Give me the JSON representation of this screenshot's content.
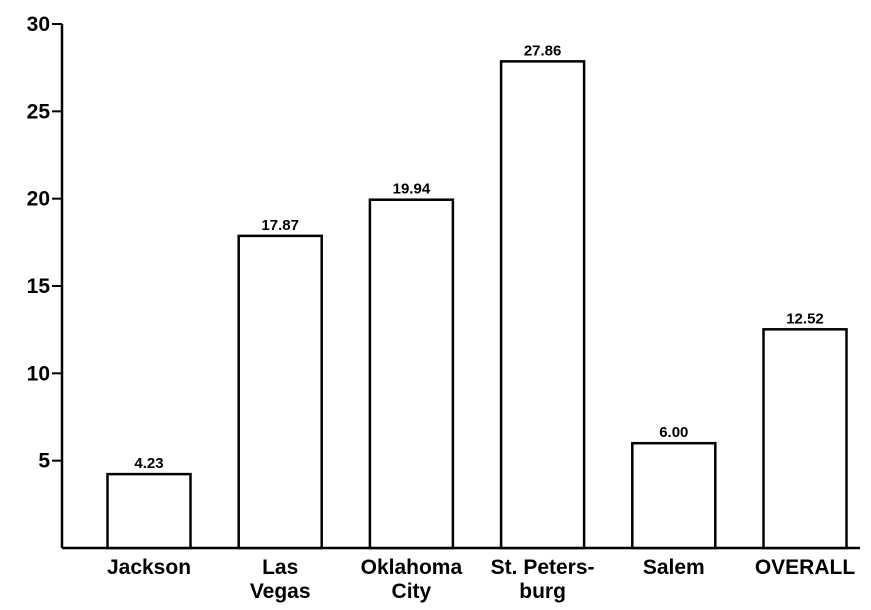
{
  "chart_data": {
    "type": "bar",
    "categories": [
      "Jackson",
      "Las\nVegas",
      "Oklahoma\nCity",
      "St. Peters-\nburg",
      "Salem",
      "OVERALL"
    ],
    "values": [
      4.23,
      17.87,
      19.94,
      27.86,
      6.0,
      12.52
    ],
    "value_labels": [
      "4.23",
      "17.87",
      "19.94",
      "27.86",
      "6.00",
      "12.52"
    ],
    "color": "#ffffff",
    "ylim": [
      0,
      30
    ],
    "yticks": [
      5,
      10,
      15,
      20,
      25,
      30
    ]
  }
}
